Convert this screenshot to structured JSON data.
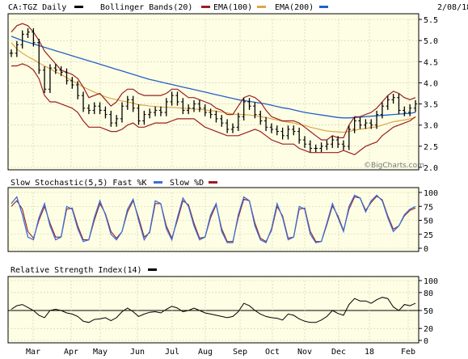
{
  "header": {
    "ticker": "CA:TGZ Daily",
    "bollinger": "Bollinger Bands(20)",
    "ema100": "EMA(100)",
    "ema200": "EMA(200)",
    "date": "2/08/18"
  },
  "stoch_label": "Slow Stochastic(5,5) Fast %K",
  "stoch_slow_label": "Slow %D",
  "rsi_label": "Relative Strength Index(14)",
  "watermark": "©BigCharts.com",
  "colors": {
    "background": "#fefee4",
    "price": "#000000",
    "bollinger": "#9a1f1f",
    "ema100": "#d9a84a",
    "ema200": "#2460c8",
    "fastk": "#3c6fd8",
    "slowd": "#9a1f1f",
    "rsi": "#000000"
  },
  "chart_data": [
    {
      "type": "line",
      "title": "CA:TGZ Daily",
      "ylim": [
        2.0,
        5.5
      ],
      "y_ticks": [
        "2.0",
        "2.5",
        "3.0",
        "3.5",
        "4.0",
        "4.5",
        "5.0",
        "5.5"
      ],
      "x_labels": [
        "Mar",
        "Apr",
        "May",
        "Jun",
        "Jul",
        "Aug",
        "Sep",
        "Oct",
        "Nov",
        "Dec",
        "18",
        "Feb"
      ],
      "series": [
        {
          "name": "CA:TGZ",
          "style": "ohlc-bars",
          "values": [
            4.7,
            4.9,
            5.15,
            5.2,
            4.95,
            4.3,
            3.85,
            4.35,
            4.3,
            4.25,
            4.05,
            3.95,
            3.7,
            3.4,
            3.35,
            3.45,
            3.35,
            3.25,
            3.05,
            3.15,
            3.45,
            3.6,
            3.4,
            3.1,
            3.25,
            3.3,
            3.35,
            3.3,
            3.55,
            3.7,
            3.55,
            3.35,
            3.4,
            3.5,
            3.4,
            3.3,
            3.25,
            3.15,
            3.05,
            2.9,
            2.95,
            3.2,
            3.55,
            3.45,
            3.25,
            3.1,
            2.95,
            2.9,
            2.85,
            2.75,
            2.9,
            2.85,
            2.65,
            2.55,
            2.45,
            2.45,
            2.5,
            2.55,
            2.65,
            2.55,
            2.5,
            2.9,
            3.1,
            3.0,
            3.05,
            3.0,
            3.25,
            3.45,
            3.6,
            3.65,
            3.35,
            3.3,
            3.4,
            3.5
          ]
        },
        {
          "name": "Bollinger Upper",
          "values": [
            5.2,
            5.35,
            5.4,
            5.35,
            5.2,
            5.0,
            4.75,
            4.6,
            4.45,
            4.3,
            4.25,
            4.2,
            4.1,
            3.9,
            3.65,
            3.7,
            3.75,
            3.6,
            3.45,
            3.55,
            3.75,
            3.85,
            3.85,
            3.75,
            3.7,
            3.7,
            3.7,
            3.7,
            3.75,
            3.85,
            3.85,
            3.75,
            3.65,
            3.65,
            3.6,
            3.55,
            3.5,
            3.4,
            3.35,
            3.25,
            3.25,
            3.45,
            3.65,
            3.7,
            3.65,
            3.55,
            3.35,
            3.2,
            3.15,
            3.1,
            3.1,
            3.1,
            3.05,
            2.95,
            2.85,
            2.75,
            2.65,
            2.65,
            2.75,
            2.7,
            2.7,
            3.0,
            3.2,
            3.2,
            3.25,
            3.3,
            3.4,
            3.55,
            3.7,
            3.8,
            3.75,
            3.65,
            3.6,
            3.65
          ]
        },
        {
          "name": "Bollinger Lower",
          "values": [
            4.4,
            4.4,
            4.45,
            4.4,
            4.3,
            4.1,
            3.7,
            3.55,
            3.55,
            3.5,
            3.45,
            3.4,
            3.3,
            3.1,
            2.95,
            2.95,
            2.95,
            2.9,
            2.85,
            2.85,
            2.9,
            3.0,
            3.05,
            2.95,
            2.95,
            3.0,
            3.05,
            3.05,
            3.05,
            3.1,
            3.15,
            3.15,
            3.15,
            3.15,
            3.05,
            2.95,
            2.9,
            2.85,
            2.8,
            2.75,
            2.75,
            2.75,
            2.8,
            2.85,
            2.9,
            2.85,
            2.75,
            2.65,
            2.6,
            2.55,
            2.55,
            2.55,
            2.45,
            2.4,
            2.35,
            2.35,
            2.35,
            2.35,
            2.35,
            2.35,
            2.4,
            2.35,
            2.3,
            2.4,
            2.5,
            2.55,
            2.6,
            2.75,
            2.85,
            2.95,
            3.0,
            3.05,
            3.1,
            3.2
          ]
        },
        {
          "name": "EMA(100)",
          "values": [
            4.95,
            4.8,
            4.7,
            4.62,
            4.55,
            4.47,
            4.4,
            4.33,
            4.26,
            4.2,
            4.12,
            4.05,
            3.98,
            3.9,
            3.84,
            3.78,
            3.72,
            3.67,
            3.63,
            3.6,
            3.57,
            3.55,
            3.52,
            3.48,
            3.47,
            3.45,
            3.44,
            3.43,
            3.42,
            3.42,
            3.41,
            3.4,
            3.39,
            3.38,
            3.37,
            3.36,
            3.34,
            3.33,
            3.31,
            3.29,
            3.26,
            3.25,
            3.25,
            3.24,
            3.22,
            3.2,
            3.18,
            3.15,
            3.12,
            3.09,
            3.07,
            3.05,
            3.02,
            2.99,
            2.95,
            2.92,
            2.89,
            2.86,
            2.85,
            2.84,
            2.83,
            2.85,
            2.88,
            2.9,
            2.92,
            2.94,
            2.96,
            3.0,
            3.04,
            3.08,
            3.1,
            3.12,
            3.15,
            3.18
          ]
        },
        {
          "name": "EMA(200)",
          "values": [
            5.1,
            5.05,
            5.0,
            4.96,
            4.92,
            4.88,
            4.84,
            4.8,
            4.76,
            4.72,
            4.68,
            4.64,
            4.6,
            4.56,
            4.52,
            4.48,
            4.44,
            4.4,
            4.36,
            4.32,
            4.28,
            4.24,
            4.2,
            4.16,
            4.12,
            4.08,
            4.05,
            4.02,
            3.99,
            3.96,
            3.93,
            3.9,
            3.87,
            3.84,
            3.81,
            3.78,
            3.75,
            3.72,
            3.69,
            3.66,
            3.63,
            3.6,
            3.58,
            3.56,
            3.54,
            3.52,
            3.5,
            3.47,
            3.44,
            3.41,
            3.39,
            3.36,
            3.33,
            3.3,
            3.28,
            3.26,
            3.24,
            3.22,
            3.2,
            3.18,
            3.17,
            3.17,
            3.18,
            3.19,
            3.2,
            3.21,
            3.22,
            3.23,
            3.24,
            3.25,
            3.26,
            3.27,
            3.28,
            3.3
          ]
        }
      ]
    },
    {
      "type": "line",
      "title": "Slow Stochastic(5,5)",
      "ylim": [
        0,
        100
      ],
      "y_ticks": [
        "0",
        "25",
        "50",
        "75",
        "100"
      ],
      "series": [
        {
          "name": "Fast %K",
          "values": [
            80,
            92,
            60,
            20,
            15,
            55,
            80,
            40,
            15,
            20,
            75,
            70,
            35,
            12,
            15,
            55,
            85,
            60,
            25,
            15,
            30,
            70,
            88,
            50,
            15,
            30,
            85,
            80,
            35,
            15,
            55,
            90,
            75,
            40,
            15,
            20,
            60,
            80,
            30,
            10,
            10,
            60,
            92,
            85,
            40,
            15,
            10,
            35,
            80,
            55,
            15,
            20,
            75,
            70,
            25,
            10,
            12,
            45,
            80,
            55,
            30,
            75,
            95,
            90,
            65,
            85,
            95,
            85,
            55,
            30,
            40,
            60,
            70,
            75
          ]
        },
        {
          "name": "Slow %D",
          "values": [
            75,
            85,
            70,
            30,
            18,
            50,
            75,
            45,
            20,
            20,
            70,
            72,
            40,
            15,
            15,
            50,
            80,
            62,
            30,
            18,
            30,
            65,
            85,
            55,
            20,
            28,
            80,
            80,
            40,
            18,
            50,
            85,
            78,
            45,
            18,
            20,
            55,
            78,
            35,
            12,
            12,
            55,
            88,
            85,
            45,
            18,
            12,
            32,
            75,
            58,
            18,
            20,
            70,
            72,
            30,
            12,
            12,
            42,
            76,
            58,
            32,
            70,
            92,
            90,
            68,
            82,
            93,
            87,
            58,
            34,
            40,
            58,
            68,
            72
          ]
        }
      ]
    },
    {
      "type": "line",
      "title": "Relative Strength Index(14)",
      "ylim": [
        0,
        100
      ],
      "y_ticks": [
        "0",
        "20",
        "50",
        "80",
        "100"
      ],
      "series": [
        {
          "name": "RSI(14)",
          "values": [
            52,
            58,
            60,
            55,
            50,
            42,
            38,
            50,
            52,
            50,
            46,
            44,
            40,
            32,
            30,
            35,
            36,
            38,
            33,
            38,
            48,
            54,
            48,
            40,
            44,
            47,
            48,
            46,
            52,
            57,
            54,
            48,
            50,
            54,
            50,
            46,
            44,
            42,
            40,
            38,
            40,
            48,
            62,
            58,
            50,
            44,
            40,
            38,
            37,
            34,
            44,
            42,
            36,
            32,
            30,
            30,
            34,
            40,
            50,
            45,
            42,
            60,
            70,
            66,
            66,
            62,
            68,
            72,
            70,
            56,
            50,
            60,
            58,
            62
          ]
        }
      ]
    }
  ]
}
